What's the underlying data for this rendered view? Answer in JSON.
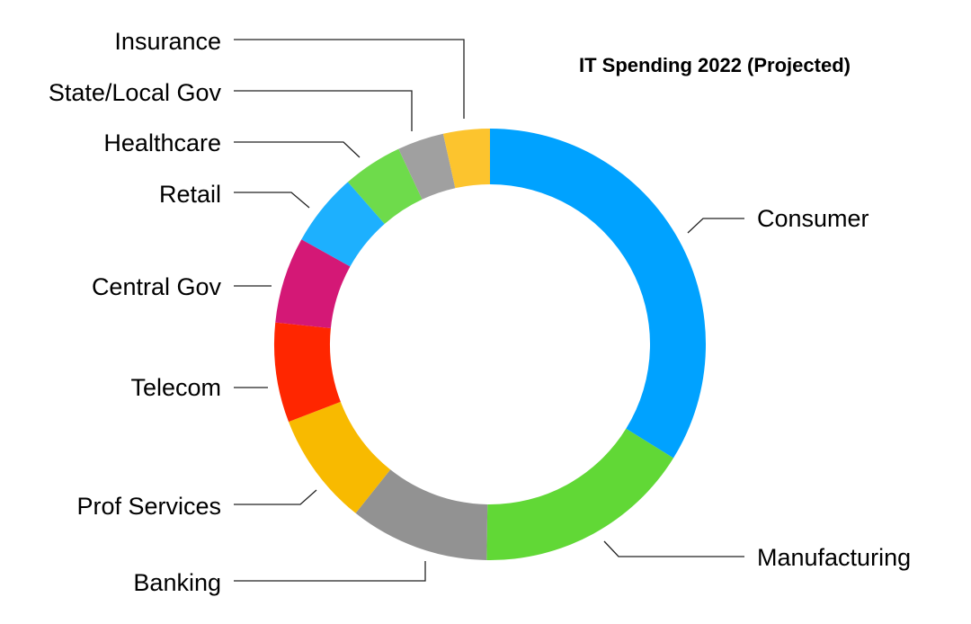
{
  "chart_data": {
    "type": "pie",
    "variant": "donut",
    "title": "IT Spending 2022 (Projected)",
    "start_angle_deg": 0,
    "direction": "clockwise",
    "legend": "none",
    "slices": [
      {
        "label": "Consumer",
        "value": 34.0,
        "color": "#00A2FF"
      },
      {
        "label": "Manufacturing",
        "value": 16.5,
        "color": "#61D836"
      },
      {
        "label": "Banking",
        "value": 10.5,
        "color": "#929292"
      },
      {
        "label": "Prof Services",
        "value": 8.5,
        "color": "#F8BA00"
      },
      {
        "label": "Telecom",
        "value": 7.5,
        "color": "#FF2600"
      },
      {
        "label": "Central Gov",
        "value": 6.5,
        "color": "#D41876"
      },
      {
        "label": "Retail",
        "value": 5.5,
        "color": "#1DB0FE"
      },
      {
        "label": "Healthcare",
        "value": 4.5,
        "color": "#6EDB4B"
      },
      {
        "label": "State/Local Gov",
        "value": 3.5,
        "color": "#A0A0A0"
      },
      {
        "label": "Insurance",
        "value": 3.5,
        "color": "#FCC42E"
      }
    ]
  }
}
